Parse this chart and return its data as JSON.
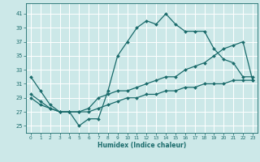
{
  "xlabel": "Humidex (Indice chaleur)",
  "bg_color": "#cce8e8",
  "line_color": "#1a6b6b",
  "grid_color": "#ffffff",
  "xlim": [
    -0.5,
    23.5
  ],
  "ylim": [
    24,
    42.5
  ],
  "yticks": [
    25,
    27,
    29,
    31,
    33,
    35,
    37,
    39,
    41
  ],
  "xticks": [
    0,
    1,
    2,
    3,
    4,
    5,
    6,
    7,
    8,
    9,
    10,
    11,
    12,
    13,
    14,
    15,
    16,
    17,
    18,
    19,
    20,
    21,
    22,
    23
  ],
  "curve1_x": [
    0,
    1,
    2,
    3,
    4,
    5,
    6,
    7,
    8,
    9,
    10,
    11,
    12,
    13,
    14,
    15,
    16,
    17,
    18,
    19,
    20,
    21,
    22,
    23
  ],
  "curve1_y": [
    32,
    30,
    28,
    27,
    27,
    25,
    26,
    26,
    30,
    35,
    37,
    39,
    40,
    39.5,
    41,
    39.5,
    38.5,
    38.5,
    38.5,
    36,
    34.5,
    34,
    32,
    32
  ],
  "curve2_x": [
    0,
    1,
    2,
    3,
    4,
    5,
    6,
    7,
    8,
    9,
    10,
    11,
    12,
    13,
    14,
    15,
    16,
    17,
    18,
    19,
    20,
    21,
    22,
    23
  ],
  "curve2_y": [
    29.5,
    28.5,
    27.5,
    27,
    27,
    27,
    27.5,
    29,
    29.5,
    30,
    30,
    30.5,
    31,
    31.5,
    32,
    32,
    33,
    33.5,
    34,
    35,
    36,
    36.5,
    37,
    31.5
  ],
  "curve3_x": [
    0,
    1,
    2,
    3,
    4,
    5,
    6,
    7,
    8,
    9,
    10,
    11,
    12,
    13,
    14,
    15,
    16,
    17,
    18,
    19,
    20,
    21,
    22,
    23
  ],
  "curve3_y": [
    29,
    28,
    27.5,
    27,
    27,
    27,
    27,
    27.5,
    28,
    28.5,
    29,
    29,
    29.5,
    29.5,
    30,
    30,
    30.5,
    30.5,
    31,
    31,
    31,
    31.5,
    31.5,
    31.5
  ]
}
